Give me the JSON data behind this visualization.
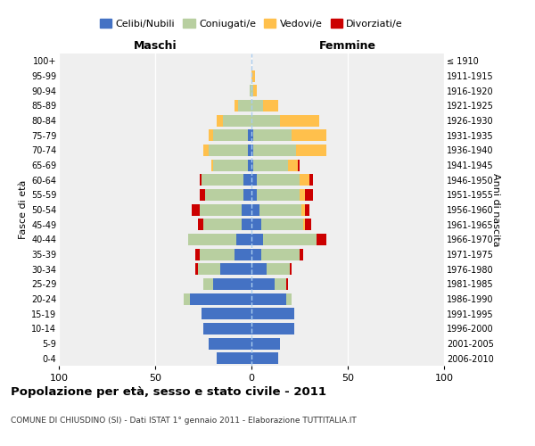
{
  "age_groups": [
    "0-4",
    "5-9",
    "10-14",
    "15-19",
    "20-24",
    "25-29",
    "30-34",
    "35-39",
    "40-44",
    "45-49",
    "50-54",
    "55-59",
    "60-64",
    "65-69",
    "70-74",
    "75-79",
    "80-84",
    "85-89",
    "90-94",
    "95-99",
    "100+"
  ],
  "birth_years": [
    "2006-2010",
    "2001-2005",
    "1996-2000",
    "1991-1995",
    "1986-1990",
    "1981-1985",
    "1976-1980",
    "1971-1975",
    "1966-1970",
    "1961-1965",
    "1956-1960",
    "1951-1955",
    "1946-1950",
    "1941-1945",
    "1936-1940",
    "1931-1935",
    "1926-1930",
    "1921-1925",
    "1916-1920",
    "1911-1915",
    "≤ 1910"
  ],
  "colors": {
    "celibi": "#4472c4",
    "coniugati": "#b8cfa0",
    "vedovi": "#ffc04c",
    "divorziati": "#cc0000"
  },
  "maschi": {
    "celibi": [
      18,
      22,
      25,
      26,
      32,
      20,
      16,
      9,
      8,
      5,
      5,
      4,
      4,
      2,
      2,
      2,
      0,
      0,
      0,
      0,
      0
    ],
    "coniugati": [
      0,
      0,
      0,
      0,
      3,
      5,
      12,
      18,
      25,
      20,
      22,
      20,
      22,
      18,
      20,
      18,
      15,
      7,
      1,
      0,
      0
    ],
    "vedovi": [
      0,
      0,
      0,
      0,
      0,
      0,
      0,
      0,
      0,
      0,
      0,
      0,
      0,
      1,
      3,
      2,
      3,
      2,
      0,
      0,
      0
    ],
    "divorziati": [
      0,
      0,
      0,
      0,
      0,
      0,
      1,
      2,
      0,
      3,
      4,
      3,
      1,
      0,
      0,
      0,
      0,
      0,
      0,
      0,
      0
    ]
  },
  "femmine": {
    "nubili": [
      14,
      15,
      22,
      22,
      18,
      12,
      8,
      5,
      6,
      5,
      4,
      3,
      3,
      1,
      1,
      1,
      0,
      0,
      0,
      0,
      0
    ],
    "coniugate": [
      0,
      0,
      0,
      0,
      3,
      6,
      12,
      20,
      28,
      22,
      22,
      22,
      22,
      18,
      22,
      20,
      15,
      6,
      1,
      0,
      0
    ],
    "vedove": [
      0,
      0,
      0,
      0,
      0,
      0,
      0,
      0,
      0,
      1,
      2,
      3,
      5,
      5,
      16,
      18,
      20,
      8,
      2,
      2,
      0
    ],
    "divorziate": [
      0,
      0,
      0,
      0,
      0,
      1,
      1,
      2,
      5,
      3,
      2,
      4,
      2,
      1,
      0,
      0,
      0,
      0,
      0,
      0,
      0
    ]
  },
  "xlim": 100,
  "title": "Popolazione per età, sesso e stato civile - 2011",
  "subtitle": "COMUNE DI CHIUSDINO (SI) - Dati ISTAT 1° gennaio 2011 - Elaborazione TUTTITALIA.IT",
  "ylabel_left": "Fasce di età",
  "ylabel_right": "Anni di nascita",
  "header_left": "Maschi",
  "header_right": "Femmine",
  "legend_labels": [
    "Celibi/Nubili",
    "Coniugati/e",
    "Vedovi/e",
    "Divorziati/e"
  ],
  "xticks": [
    -100,
    -50,
    0,
    50,
    100
  ],
  "xtick_labels": [
    "100",
    "50",
    "0",
    "50",
    "100"
  ],
  "bg_color": "#efefef",
  "grid_color": "#ffffff",
  "center_line_color": "#aaccee"
}
